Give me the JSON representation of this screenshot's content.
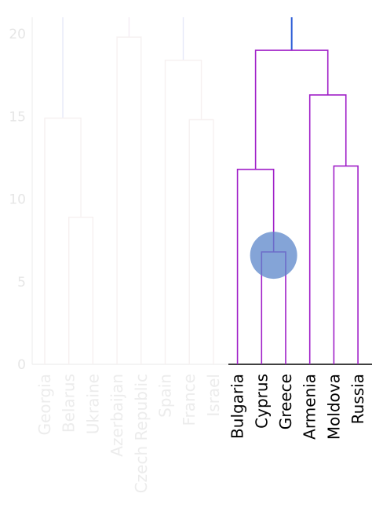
{
  "chart_data": {
    "type": "dendrogram",
    "ylim": [
      0,
      21
    ],
    "yticks": [
      0,
      5,
      10,
      15,
      20
    ],
    "grid": false,
    "colors": {
      "faded_axis": "#eeeeee",
      "faded_tick": "#e6e6e6",
      "faded_label": "#ececec",
      "faded_blue": "#e6e8f8",
      "faded_purple": "#f4ecf4",
      "faded_link": "#f6f0f0",
      "active_axis": "#000000",
      "active_label": "#000000",
      "active_link": "#a020c8",
      "root_link": "#2b5cd6",
      "cursor": "#5b86c9"
    },
    "leaves": [
      {
        "name": "Georgia",
        "active": false
      },
      {
        "name": "Belarus",
        "active": false
      },
      {
        "name": "Ukraine",
        "active": false
      },
      {
        "name": "Azerbaijan",
        "active": false
      },
      {
        "name": "Czech Republic",
        "active": false
      },
      {
        "name": "Spain",
        "active": false
      },
      {
        "name": "France",
        "active": false
      },
      {
        "name": "Israel",
        "active": false
      },
      {
        "name": "Bulgaria",
        "active": true
      },
      {
        "name": "Cyprus",
        "active": true
      },
      {
        "name": "Greece",
        "active": true
      },
      {
        "name": "Armenia",
        "active": true
      },
      {
        "name": "Moldova",
        "active": true
      },
      {
        "name": "Russia",
        "active": true
      }
    ],
    "merges": [
      {
        "id": "belarus-ukraine",
        "left": "Belarus",
        "right": "Ukraine",
        "height": 8.9,
        "active": false
      },
      {
        "id": "georgia-belarus-ukraine",
        "left": "Georgia",
        "right": "belarus-ukraine",
        "height": 14.9,
        "active": false
      },
      {
        "id": "azerbaijan-czech",
        "left": "Azerbaijan",
        "right": "Czech Republic",
        "height": 19.8,
        "active": false
      },
      {
        "id": "france-israel",
        "left": "France",
        "right": "Israel",
        "height": 14.8,
        "active": false
      },
      {
        "id": "spain-france-israel",
        "left": "Spain",
        "right": "france-israel",
        "height": 18.4,
        "active": false
      },
      {
        "id": "cyprus-greece",
        "left": "Cyprus",
        "right": "Greece",
        "height": 6.8,
        "active": true
      },
      {
        "id": "bulgaria-cyprus-greece",
        "left": "Bulgaria",
        "right": "cyprus-greece",
        "height": 11.8,
        "active": true
      },
      {
        "id": "moldova-russia",
        "left": "Moldova",
        "right": "Russia",
        "height": 12.0,
        "active": true
      },
      {
        "id": "armenia-moldova-russia",
        "left": "Armenia",
        "right": "moldova-russia",
        "height": 16.3,
        "active": true
      },
      {
        "id": "group-right",
        "left": "bulgaria-cyprus-greece",
        "right": "armenia-moldova-russia",
        "height": 19.0,
        "active": true
      }
    ],
    "upward_links": [
      {
        "from": "georgia-belarus-ukraine",
        "color": "faded_blue"
      },
      {
        "from": "azerbaijan-czech",
        "color": "faded_purple"
      },
      {
        "from": "spain-france-israel",
        "color": "faded_blue"
      },
      {
        "from": "group-right",
        "color": "root_link"
      }
    ],
    "cursor_at": {
      "leaf": "Cyprus",
      "height": 6.6
    }
  }
}
